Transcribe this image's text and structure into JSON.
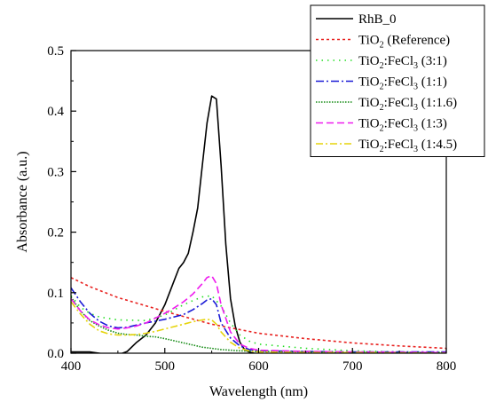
{
  "chart_data": {
    "type": "line",
    "title": "",
    "xlabel": "Wavelength (nm)",
    "ylabel": "Absorbance (a.u.)",
    "xlim": [
      400,
      800
    ],
    "ylim": [
      0,
      0.5
    ],
    "x_ticks": [
      "400",
      "500",
      "600",
      "700",
      "800"
    ],
    "y_ticks": [
      "0.0",
      "0.1",
      "0.2",
      "0.3",
      "0.4",
      "0.5"
    ],
    "x_tick_values": [
      400,
      500,
      600,
      700,
      800
    ],
    "y_tick_values": [
      0,
      0.1,
      0.2,
      0.3,
      0.4,
      0.5
    ],
    "grid": false,
    "legend_position": "top-right",
    "series": [
      {
        "name": "RhB_0",
        "legend": {
          "base": "RhB_0",
          "tail": ""
        },
        "color": "#000000",
        "dash": "solid",
        "x": [
          400,
          420,
          425,
          430,
          440,
          450,
          460,
          470,
          480,
          490,
          500,
          510,
          515,
          520,
          525,
          530,
          535,
          540,
          545,
          550,
          555,
          560,
          565,
          570,
          575,
          580,
          585,
          590,
          595,
          600,
          620,
          650,
          700,
          800
        ],
        "y": [
          0.002,
          0.002,
          0.001,
          0,
          -0.003,
          -0.003,
          0.003,
          0.018,
          0.03,
          0.05,
          0.08,
          0.12,
          0.14,
          0.15,
          0.165,
          0.2,
          0.24,
          0.31,
          0.38,
          0.425,
          0.42,
          0.31,
          0.18,
          0.09,
          0.045,
          0.018,
          0.006,
          0.002,
          0,
          -0.001,
          -0.001,
          -0.001,
          -0.001,
          -0.001
        ]
      },
      {
        "name": "TiO2 (Reference)",
        "legend": {
          "base": "TiO",
          "sub": "2",
          "tail": " (Reference)"
        },
        "color": "#e8211f",
        "dash": "3,3",
        "x": [
          400,
          420,
          450,
          500,
          550,
          600,
          650,
          700,
          750,
          800
        ],
        "y": [
          0.125,
          0.11,
          0.092,
          0.069,
          0.048,
          0.033,
          0.024,
          0.017,
          0.012,
          0.008
        ]
      },
      {
        "name": "TiO2:FeCl3 (3:1)",
        "legend": {
          "base": "TiO",
          "sub": "2",
          "mid": ":FeCl",
          "sub2": "3",
          "tail": " (3:1)"
        },
        "color": "#22dd22",
        "dash": "1.5,5",
        "x": [
          400,
          410,
          420,
          430,
          450,
          480,
          500,
          520,
          530,
          540,
          550,
          560,
          570,
          580,
          590,
          600,
          650,
          700,
          750,
          800
        ],
        "y": [
          0.095,
          0.076,
          0.066,
          0.06,
          0.055,
          0.054,
          0.063,
          0.08,
          0.087,
          0.093,
          0.095,
          0.078,
          0.05,
          0.03,
          0.02,
          0.015,
          0.008,
          0.004,
          0.002,
          0.001
        ]
      },
      {
        "name": "TiO2:FeCl3 (1:1)",
        "legend": {
          "base": "TiO",
          "sub": "2",
          "mid": ":FeCl",
          "sub2": "3",
          "tail": " (1:1)"
        },
        "color": "#1a1ad6",
        "dash": "9,3,2,3",
        "x": [
          400,
          410,
          420,
          430,
          440,
          450,
          460,
          480,
          500,
          510,
          520,
          530,
          540,
          545,
          550,
          555,
          560,
          570,
          580,
          590,
          600,
          650,
          700,
          800
        ],
        "y": [
          0.108,
          0.085,
          0.066,
          0.053,
          0.045,
          0.042,
          0.043,
          0.05,
          0.056,
          0.06,
          0.064,
          0.072,
          0.082,
          0.088,
          0.09,
          0.08,
          0.05,
          0.025,
          0.012,
          0.006,
          0.004,
          0.003,
          0.002,
          0.002
        ]
      },
      {
        "name": "TiO2:FeCl3 (1:1.6)",
        "legend": {
          "base": "TiO",
          "sub": "2",
          "mid": ":FeCl",
          "sub2": "3",
          "tail": " (1:1.6)"
        },
        "color": "#138a13",
        "dash": "1.5,1.5",
        "x": [
          400,
          410,
          420,
          430,
          440,
          450,
          460,
          470,
          480,
          490,
          500,
          520,
          540,
          560,
          580,
          600,
          650,
          700,
          800
        ],
        "y": [
          0.093,
          0.07,
          0.054,
          0.045,
          0.038,
          0.033,
          0.031,
          0.03,
          0.028,
          0.027,
          0.024,
          0.017,
          0.01,
          0.006,
          0.004,
          0.003,
          0.002,
          0.001,
          0.001
        ]
      },
      {
        "name": "TiO2:FeCl3 (1:3)",
        "legend": {
          "base": "TiO",
          "sub": "2",
          "mid": ":FeCl",
          "sub2": "3",
          "tail": " (1:3)"
        },
        "color": "#ee1cee",
        "dash": "8,4",
        "x": [
          400,
          410,
          420,
          430,
          440,
          450,
          460,
          470,
          480,
          490,
          500,
          510,
          520,
          530,
          540,
          545,
          550,
          555,
          560,
          570,
          580,
          590,
          600,
          650,
          700,
          800
        ],
        "y": [
          0.09,
          0.07,
          0.055,
          0.047,
          0.042,
          0.04,
          0.042,
          0.045,
          0.05,
          0.058,
          0.066,
          0.075,
          0.085,
          0.098,
          0.115,
          0.125,
          0.128,
          0.115,
          0.08,
          0.035,
          0.015,
          0.008,
          0.005,
          0.003,
          0.002,
          0.001
        ]
      },
      {
        "name": "TiO2:FeCl3 (1:4.5)",
        "legend": {
          "base": "TiO",
          "sub": "2",
          "mid": ":FeCl",
          "sub2": "3",
          "tail": " (1:4.5)"
        },
        "color": "#e6d40c",
        "dash": "8,3,2,3",
        "x": [
          400,
          410,
          420,
          430,
          440,
          450,
          460,
          470,
          480,
          490,
          500,
          510,
          520,
          530,
          540,
          545,
          550,
          555,
          560,
          570,
          580,
          590,
          600,
          650,
          700,
          800
        ],
        "y": [
          0.085,
          0.065,
          0.048,
          0.037,
          0.032,
          0.03,
          0.03,
          0.031,
          0.033,
          0.036,
          0.04,
          0.044,
          0.048,
          0.052,
          0.055,
          0.056,
          0.055,
          0.048,
          0.035,
          0.018,
          0.008,
          0.004,
          0.002,
          0.001,
          0.001,
          0
        ]
      }
    ]
  }
}
